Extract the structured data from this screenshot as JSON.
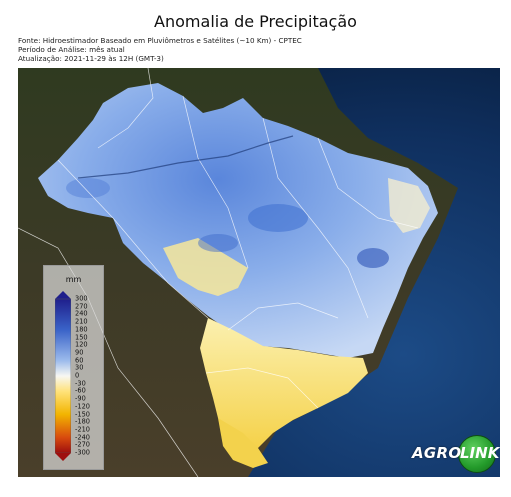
{
  "header": {
    "title": "Anomalia de Precipitação",
    "source_line": "Fonte: Hidroestimador Baseado em Pluviômetros e Satélites (~10 Km) - CPTEC",
    "period_line": "Período de Análise: mês atual",
    "update_line": "Atualização: 2021-11-29 às 12H (GMT-3)"
  },
  "legend": {
    "unit": "mm",
    "ticks": [
      "300",
      "270",
      "240",
      "210",
      "180",
      "150",
      "120",
      "90",
      "60",
      "30",
      "0",
      "-30",
      "-60",
      "-90",
      "-120",
      "-150",
      "-180",
      "-210",
      "-240",
      "-270",
      "-300"
    ],
    "colors": {
      "wet_max": "#1f1f8c",
      "wet_mid": "#4a7fd6",
      "wet_low": "#c9dbf5",
      "neutral": "#f7f7f2",
      "dry_low": "#ffe27a",
      "dry_mid": "#f2b400",
      "dry_max": "#9e0f0f"
    }
  },
  "logo": {
    "part1": "AGRO",
    "part2": "LINK"
  },
  "map_colors": {
    "ocean": "#0c2a55",
    "land": "#3a3422",
    "wet_region": "#7ea2e6",
    "dry_region": "#f6e070"
  }
}
